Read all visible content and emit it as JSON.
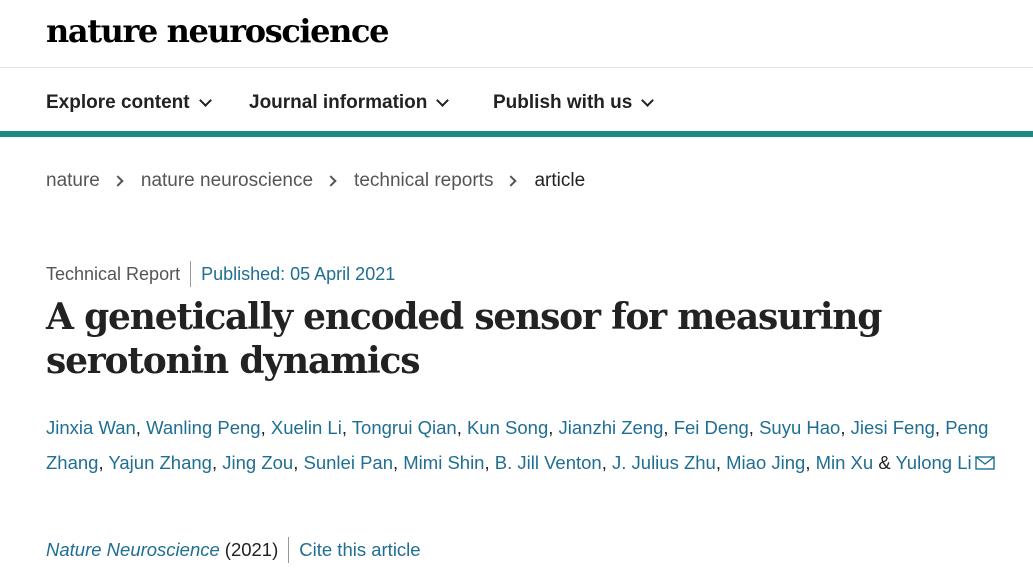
{
  "logo": "nature neuroscience",
  "nav": {
    "items": [
      {
        "label": "Explore content"
      },
      {
        "label": "Journal information"
      },
      {
        "label": "Publish with us"
      }
    ]
  },
  "breadcrumb": [
    "nature",
    "nature neuroscience",
    "technical reports",
    "article"
  ],
  "article": {
    "type": "Technical Report",
    "published": "Published: 05 April 2021",
    "title_line1": "A genetically encoded sensor for measuring",
    "title_line2": "serotonin dynamics",
    "authors": [
      "Jinxia Wan",
      "Wanling Peng",
      "Xuelin Li",
      "Tongrui Qian",
      "Kun Song",
      "Jianzhi Zeng",
      "Fei Deng",
      "Suyu Hao",
      "Jiesi Feng",
      "Peng Zhang",
      "Yajun Zhang",
      "Jing Zou",
      "Sunlei Pan",
      "Mimi Shin",
      "B. Jill Venton",
      "J. Julius Zhu",
      "Miao Jing",
      "Min Xu",
      "Yulong Li"
    ],
    "author_sep": ", ",
    "ampersand": " & ",
    "journal": "Nature Neuroscience",
    "year": "(2021)",
    "cite_label": "Cite this article"
  },
  "icons": {
    "dropdown": "chevron-down-icon",
    "breadcrumb_sep": "chevron-right-icon",
    "contact": "mail-icon"
  },
  "colors": {
    "accent": "#1a8c82",
    "link": "#1f6e93"
  }
}
